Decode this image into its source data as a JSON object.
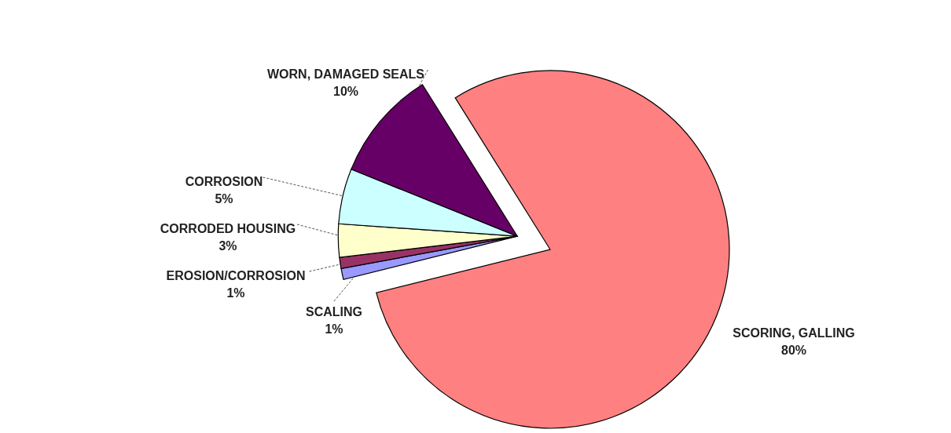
{
  "chart_data": {
    "type": "pie",
    "categories": [
      "SCORING, GALLING",
      "SCALING",
      "EROSION/CORROSION",
      "CORRODED HOUSING",
      "CORROSION",
      "WORN, DAMAGED SEALS"
    ],
    "values": [
      80,
      1,
      1,
      3,
      5,
      10
    ],
    "colors": [
      "#ff8080",
      "#9999ff",
      "#993366",
      "#ffffcc",
      "#ccffff",
      "#660066"
    ],
    "value_labels": [
      "80%",
      "1%",
      "1%",
      "3%",
      "5%",
      "10%"
    ]
  }
}
